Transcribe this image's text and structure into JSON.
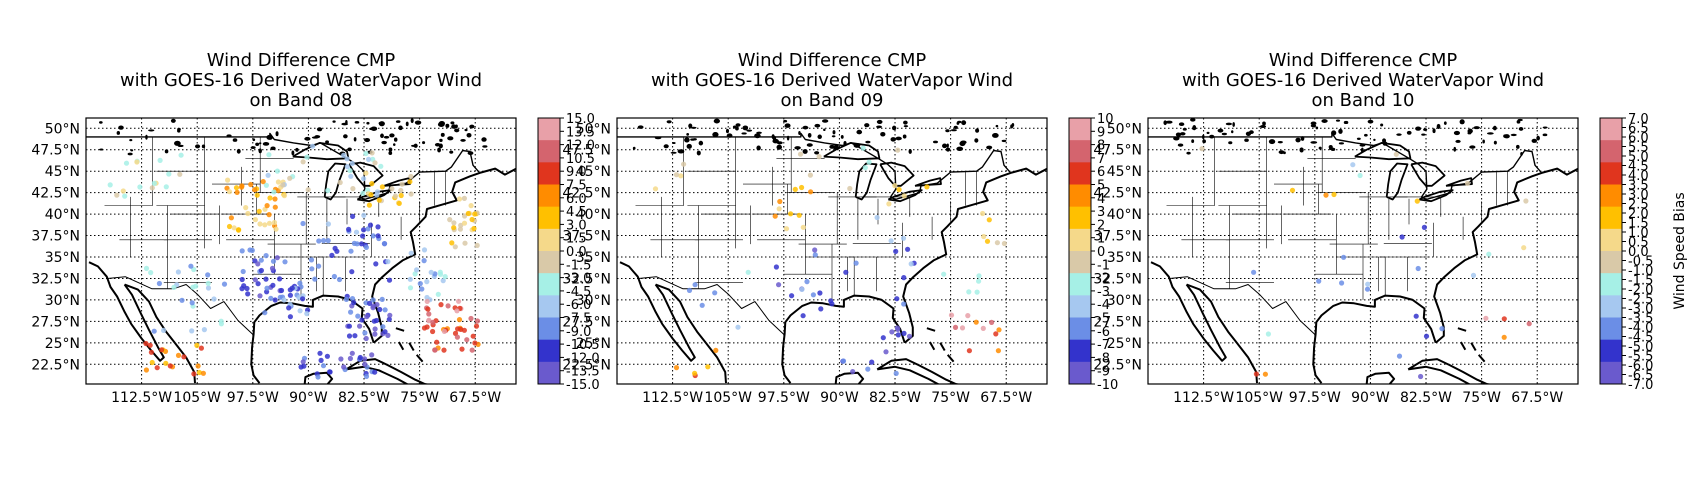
{
  "figure": {
    "colorbar_label": "Wind Speed Bias",
    "lon_ticks": [
      "112.5°W",
      "105°W",
      "97.5°W",
      "90°W",
      "82.5°W",
      "75°W",
      "67.5°W"
    ],
    "lat_ticks": [
      "50°N",
      "47.5°N",
      "45°N",
      "42.5°N",
      "40°N",
      "37.5°N",
      "35°N",
      "32.5°N",
      "30°N",
      "27.5°N",
      "25°N",
      "22.5°N"
    ],
    "panels": [
      {
        "title": [
          "Wind Difference CMP",
          "with GOES-16 Derived WaterVapor Wind",
          "on Band 08"
        ],
        "colorbar_ticks": [
          "15.0",
          "13.5",
          "12.0",
          "10.5",
          "9.0",
          "7.5",
          "6.0",
          "4.5",
          "3.0",
          "1.5",
          "0.0",
          "-1.5",
          "-3.0",
          "-4.5",
          "-6.0",
          "-7.5",
          "-9.0",
          "-10.5",
          "-12.0",
          "-13.5",
          "-15.0"
        ],
        "density": 1.0
      },
      {
        "title": [
          "Wind Difference CMP",
          "with GOES-16 Derived WaterVapor Wind",
          "on Band 09"
        ],
        "colorbar_ticks": [
          "10",
          "9",
          "8",
          "7",
          "6",
          "5",
          "4",
          "3",
          "2",
          "1",
          "0",
          "-1",
          "-2",
          "-3",
          "-4",
          "-5",
          "-6",
          "-7",
          "-8",
          "-9",
          "-10"
        ],
        "density": 0.25
      },
      {
        "title": [
          "Wind Difference CMP",
          "with GOES-16 Derived WaterVapor Wind",
          "on Band 10"
        ],
        "colorbar_ticks": [
          "7.0",
          "6.5",
          "6.0",
          "5.5",
          "5.0",
          "4.5",
          "4.0",
          "3.5",
          "3.0",
          "2.5",
          "2.0",
          "1.5",
          "1.0",
          "0.5",
          "0.0",
          "-0.5",
          "-1.0",
          "-1.5",
          "-2.0",
          "-2.5",
          "-3.0",
          "-3.5",
          "-4.0",
          "-4.5",
          "-5.0",
          "-5.5",
          "-6.0",
          "-6.5",
          "-7.0"
        ],
        "density": 0.08
      }
    ],
    "colormap": [
      "#6a5acd",
      "#3333cc",
      "#6b8ee6",
      "#a6c8f0",
      "#a6f0e6",
      "#d9c9a8",
      "#f5d98a",
      "#ffc000",
      "#ff8c00",
      "#e0351e",
      "#d4646e",
      "#e8a0a8"
    ]
  }
}
